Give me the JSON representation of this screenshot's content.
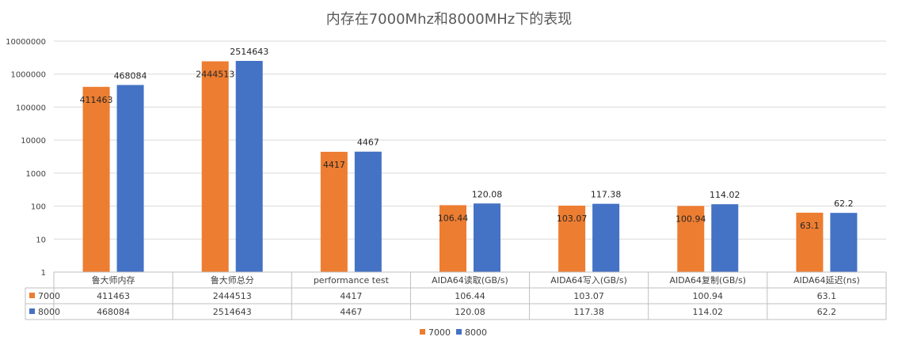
{
  "chart_data": {
    "type": "bar",
    "title": "内存在7000Mhz和8000MHz下的表现",
    "y_scale": "log",
    "ylim": [
      1,
      10000000
    ],
    "y_ticks": [
      "1",
      "10",
      "100",
      "1000",
      "10000",
      "100000",
      "1000000",
      "10000000"
    ],
    "categories": [
      "鲁大师内存",
      "鲁大师总分",
      "performance test",
      "AIDA64读取(GB/s)",
      "AIDA64写入(GB/s)",
      "AIDA64复制(GB/s)",
      "AIDA64延迟(ns)"
    ],
    "series": [
      {
        "name": "7000",
        "color": "#ED7D31",
        "values": [
          411463,
          2444513,
          4417,
          106.44,
          103.07,
          100.94,
          63.1
        ]
      },
      {
        "name": "8000",
        "color": "#4472C4",
        "values": [
          468084,
          2514643,
          4467,
          120.08,
          117.38,
          114.02,
          62.2
        ]
      }
    ],
    "grid": true,
    "legend_position": "bottom",
    "data_table": true
  }
}
